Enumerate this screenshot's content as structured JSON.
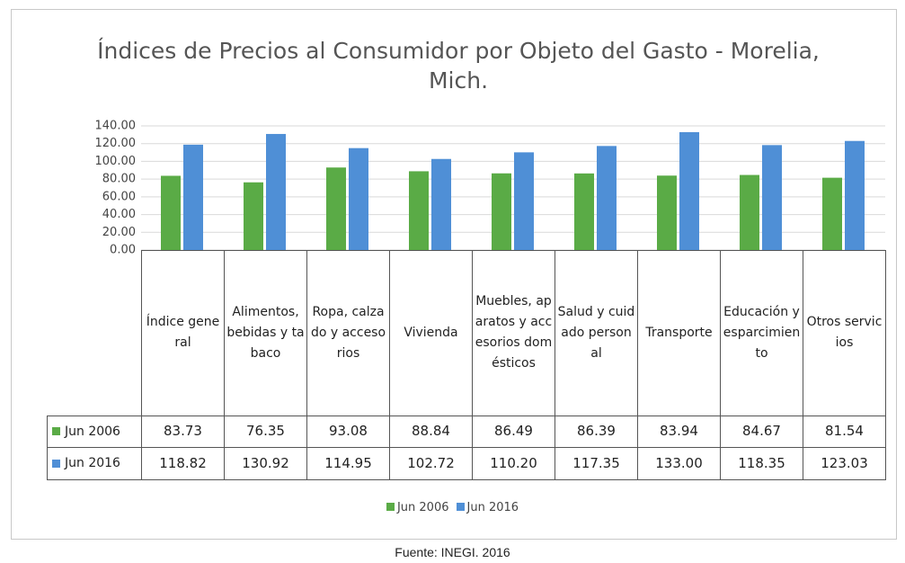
{
  "chart_data": {
    "type": "bar",
    "title": "Índices de Precios al Consumidor  por Objeto del Gasto - Morelia, Mich.",
    "categories": [
      "Índice general",
      "Alimentos, bebidas y tabaco",
      "Ropa, calzado y accesorios",
      "Vivienda",
      "Muebles, aparatos y accesorios domésticos",
      "Salud y cuidado personal",
      "Transporte",
      "Educación y esparcimiento",
      "Otros servicios"
    ],
    "series": [
      {
        "name": "Jun 2006",
        "color": "#5aab46",
        "values": [
          83.73,
          76.35,
          93.08,
          88.84,
          86.49,
          86.39,
          83.94,
          84.67,
          81.54
        ],
        "value_labels": [
          "83.73",
          "76.35",
          "93.08",
          "88.84",
          "86.49",
          "86.39",
          "83.94",
          "84.67",
          "81.54"
        ]
      },
      {
        "name": "Jun 2016",
        "color": "#4f8fd6",
        "values": [
          118.82,
          130.92,
          114.95,
          102.72,
          110.2,
          117.35,
          133,
          118.35,
          123.03
        ],
        "value_labels": [
          "118.82",
          "130.92",
          "114.95",
          "102.72",
          "110.20",
          "117.35",
          "133.00",
          "118.35",
          "123.03"
        ]
      }
    ],
    "ylim": [
      0,
      140
    ],
    "yticks": [
      {
        "value": 0,
        "label": "0.00"
      },
      {
        "value": 20,
        "label": "20.00"
      },
      {
        "value": 40,
        "label": "40.00"
      },
      {
        "value": 60,
        "label": "60.00"
      },
      {
        "value": 80,
        "label": "80.00"
      },
      {
        "value": 100,
        "label": "100.00"
      },
      {
        "value": 120,
        "label": "120.00"
      },
      {
        "value": 140,
        "label": "140.00"
      }
    ],
    "grid": true,
    "legend": "bottom",
    "source": "Fuente: INEGI. 2016"
  }
}
